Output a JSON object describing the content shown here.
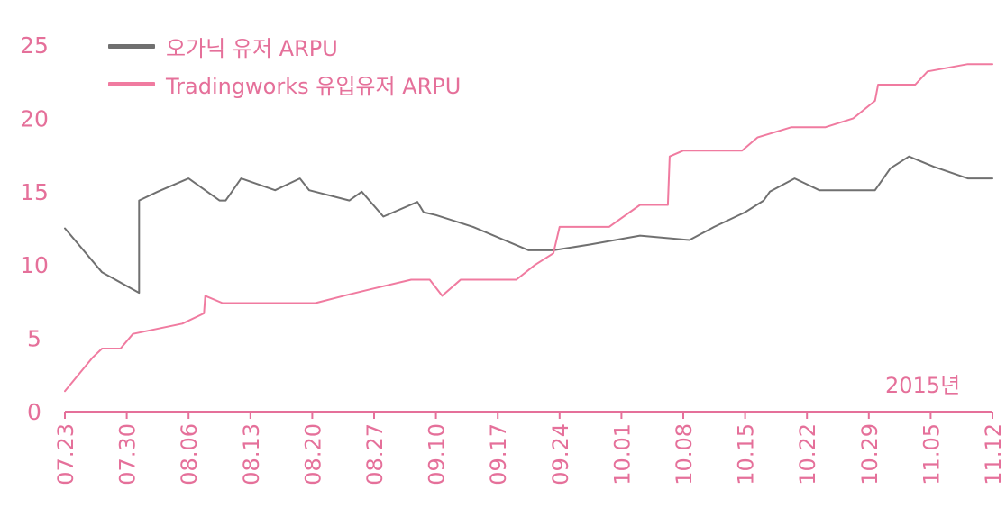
{
  "colors": {
    "accent": "#e5709a",
    "organic": "#707070",
    "tradingworks": "#f07ba0",
    "axis": "#e5709a"
  },
  "legend": {
    "organic_label": "오가닉 유저 ARPU",
    "tradingworks_label": "Tradingworks 유입유저 ARPU"
  },
  "year_label": "2015년",
  "chart_data": {
    "type": "line",
    "x_tick_labels": [
      "07.23",
      "07.30",
      "08.06",
      "08.13",
      "08.20",
      "08.27",
      "09.10",
      "09.17",
      "09.24",
      "10.01",
      "10.08",
      "10.15",
      "10.22",
      "10.29",
      "11.05",
      "11.12"
    ],
    "y_ticks": [
      0,
      5,
      10,
      15,
      20,
      25
    ],
    "ylim": [
      0,
      25
    ],
    "x_range": [
      0,
      15
    ],
    "series": [
      {
        "name": "오가닉 유저 ARPU",
        "color": "#707070",
        "points": [
          [
            0,
            12.5
          ],
          [
            0.6,
            9.5
          ],
          [
            1.2,
            8.1
          ],
          [
            1.2,
            14.4
          ],
          [
            1.5,
            15.0
          ],
          [
            2.0,
            15.9
          ],
          [
            2.5,
            14.4
          ],
          [
            2.6,
            14.4
          ],
          [
            2.85,
            15.9
          ],
          [
            3.4,
            15.1
          ],
          [
            3.8,
            15.9
          ],
          [
            3.95,
            15.1
          ],
          [
            4.6,
            14.4
          ],
          [
            4.8,
            15.0
          ],
          [
            5.15,
            13.3
          ],
          [
            5.7,
            14.3
          ],
          [
            5.8,
            13.6
          ],
          [
            6.0,
            13.4
          ],
          [
            6.6,
            12.6
          ],
          [
            7.5,
            11.0
          ],
          [
            7.9,
            11.0
          ],
          [
            8.5,
            11.4
          ],
          [
            9.3,
            12.0
          ],
          [
            10.1,
            11.7
          ],
          [
            10.5,
            12.6
          ],
          [
            11.0,
            13.6
          ],
          [
            11.3,
            14.4
          ],
          [
            11.4,
            15.0
          ],
          [
            11.8,
            15.9
          ],
          [
            12.2,
            15.1
          ],
          [
            13.1,
            15.1
          ],
          [
            13.35,
            16.6
          ],
          [
            13.65,
            17.4
          ],
          [
            14.05,
            16.7
          ],
          [
            14.6,
            15.9
          ],
          [
            15.0,
            15.9
          ]
        ]
      },
      {
        "name": "Tradingworks 유입유저 ARPU",
        "color": "#f07ba0",
        "points": [
          [
            0,
            1.4
          ],
          [
            0.45,
            3.7
          ],
          [
            0.6,
            4.3
          ],
          [
            0.9,
            4.3
          ],
          [
            1.1,
            5.3
          ],
          [
            1.9,
            6.0
          ],
          [
            2.25,
            6.7
          ],
          [
            2.27,
            7.9
          ],
          [
            2.55,
            7.4
          ],
          [
            4.05,
            7.4
          ],
          [
            4.6,
            8.0
          ],
          [
            5.0,
            8.4
          ],
          [
            5.6,
            9.0
          ],
          [
            5.9,
            9.0
          ],
          [
            6.1,
            7.9
          ],
          [
            6.4,
            9.0
          ],
          [
            7.0,
            9.0
          ],
          [
            7.3,
            9.0
          ],
          [
            7.6,
            10.0
          ],
          [
            7.9,
            10.8
          ],
          [
            8.0,
            12.6
          ],
          [
            8.8,
            12.6
          ],
          [
            9.3,
            14.1
          ],
          [
            9.75,
            14.1
          ],
          [
            9.78,
            17.4
          ],
          [
            10.0,
            17.8
          ],
          [
            10.95,
            17.8
          ],
          [
            11.2,
            18.7
          ],
          [
            11.75,
            19.4
          ],
          [
            12.3,
            19.4
          ],
          [
            12.75,
            20.0
          ],
          [
            13.1,
            21.2
          ],
          [
            13.15,
            22.3
          ],
          [
            13.75,
            22.3
          ],
          [
            13.95,
            23.2
          ],
          [
            14.6,
            23.7
          ],
          [
            15.0,
            23.7
          ]
        ]
      }
    ]
  }
}
